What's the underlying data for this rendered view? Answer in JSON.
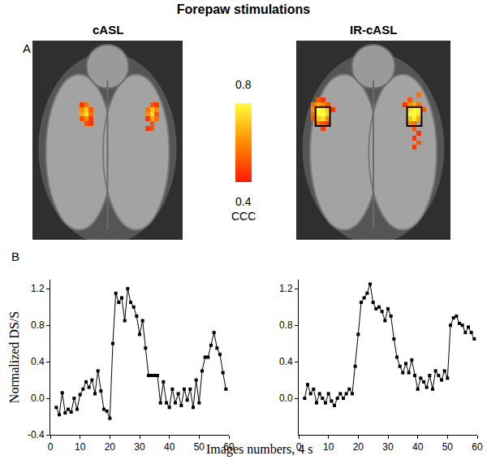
{
  "title": "Forepaw stimulations",
  "xlabel": "Images numbers, 4 s",
  "panel_labels": [
    "A",
    "B"
  ],
  "colorbar": {
    "label": "CCC",
    "range": [
      0.4,
      0.8
    ],
    "ticks": [
      0.4,
      0.8
    ]
  },
  "chart_data": [
    {
      "type": "heatmap",
      "title": "cASL",
      "columns": 32,
      "rows": 42,
      "cells": [
        [
          10,
          13,
          0.45
        ],
        [
          11,
          13,
          0.55
        ],
        [
          10,
          14,
          0.6
        ],
        [
          11,
          14,
          0.7
        ],
        [
          12,
          14,
          0.5
        ],
        [
          10,
          15,
          0.65
        ],
        [
          11,
          15,
          0.75
        ],
        [
          12,
          15,
          0.55
        ],
        [
          10,
          16,
          0.5
        ],
        [
          11,
          16,
          0.6
        ],
        [
          12,
          16,
          0.45
        ],
        [
          11,
          17,
          0.5
        ],
        [
          12,
          17,
          0.45
        ],
        [
          25,
          13,
          0.5
        ],
        [
          26,
          13,
          0.45
        ],
        [
          24,
          14,
          0.55
        ],
        [
          25,
          14,
          0.7
        ],
        [
          26,
          14,
          0.6
        ],
        [
          24,
          15,
          0.6
        ],
        [
          25,
          15,
          0.75
        ],
        [
          26,
          15,
          0.5
        ],
        [
          24,
          16,
          0.45
        ],
        [
          25,
          16,
          0.65
        ],
        [
          26,
          16,
          0.55
        ],
        [
          25,
          17,
          0.5
        ],
        [
          24,
          18,
          0.45
        ],
        [
          25,
          18,
          0.5
        ]
      ],
      "roi": []
    },
    {
      "type": "heatmap",
      "title": "IR-cASL",
      "columns": 32,
      "rows": 42,
      "cells": [
        [
          4,
          12,
          0.5
        ],
        [
          5,
          12,
          0.45
        ],
        [
          3,
          13,
          0.55
        ],
        [
          4,
          13,
          0.65
        ],
        [
          5,
          13,
          0.6
        ],
        [
          6,
          13,
          0.5
        ],
        [
          3,
          14,
          0.6
        ],
        [
          4,
          14,
          0.8
        ],
        [
          5,
          14,
          0.78
        ],
        [
          6,
          14,
          0.7
        ],
        [
          7,
          14,
          0.45
        ],
        [
          3,
          15,
          0.55
        ],
        [
          4,
          15,
          0.78
        ],
        [
          5,
          15,
          0.8
        ],
        [
          6,
          15,
          0.72
        ],
        [
          3,
          16,
          0.5
        ],
        [
          4,
          16,
          0.7
        ],
        [
          5,
          16,
          0.75
        ],
        [
          6,
          16,
          0.6
        ],
        [
          4,
          17,
          0.55
        ],
        [
          5,
          17,
          0.5
        ],
        [
          6,
          17,
          0.45
        ],
        [
          5,
          18,
          0.45
        ],
        [
          23,
          12,
          0.5
        ],
        [
          25,
          11,
          0.55
        ],
        [
          22,
          13,
          0.45
        ],
        [
          23,
          13,
          0.6
        ],
        [
          24,
          13,
          0.65
        ],
        [
          25,
          13,
          0.55
        ],
        [
          23,
          14,
          0.75
        ],
        [
          24,
          14,
          0.8
        ],
        [
          25,
          14,
          0.78
        ],
        [
          26,
          14,
          0.5
        ],
        [
          23,
          15,
          0.78
        ],
        [
          24,
          15,
          0.8
        ],
        [
          25,
          15,
          0.75
        ],
        [
          23,
          16,
          0.7
        ],
        [
          24,
          16,
          0.78
        ],
        [
          25,
          16,
          0.65
        ],
        [
          23,
          17,
          0.6
        ],
        [
          24,
          17,
          0.55
        ],
        [
          24,
          18,
          0.5
        ],
        [
          25,
          19,
          0.45
        ],
        [
          24,
          20,
          0.45
        ],
        [
          25,
          21,
          0.5
        ],
        [
          24,
          22,
          0.45
        ]
      ],
      "roi": [
        {
          "x": [
            3.5,
            6.5
          ],
          "y": [
            13.5,
            17.5
          ]
        },
        {
          "x": [
            22.5,
            25.5
          ],
          "y": [
            13.5,
            17.5
          ]
        }
      ]
    },
    {
      "type": "line",
      "ylabel": "Normalized DS/S",
      "color": "#000000",
      "marker": "square",
      "line_style": "solid",
      "x": [
        2,
        3,
        4,
        5,
        6,
        7,
        8,
        9,
        10,
        11,
        12,
        13,
        14,
        15,
        16,
        17,
        18,
        19,
        20,
        21,
        22,
        23,
        24,
        25,
        26,
        27,
        28,
        29,
        30,
        31,
        32,
        33,
        34,
        35,
        36,
        37,
        38,
        39,
        40,
        41,
        42,
        43,
        44,
        45,
        46,
        47,
        48,
        49,
        50,
        51,
        52,
        53,
        54,
        55,
        56,
        57,
        58,
        59
      ],
      "values": [
        -0.1,
        -0.18,
        0.06,
        -0.16,
        -0.12,
        -0.15,
        0.0,
        -0.12,
        0.04,
        0.1,
        0.18,
        0.12,
        0.2,
        0.05,
        0.3,
        0.08,
        -0.12,
        -0.14,
        -0.22,
        0.6,
        1.15,
        1.05,
        1.1,
        0.85,
        1.2,
        1.05,
        1.0,
        0.9,
        0.7,
        0.85,
        0.55,
        0.25,
        0.25,
        0.25,
        0.25,
        -0.05,
        0.18,
        -0.05,
        -0.1,
        0.1,
        -0.05,
        0.05,
        -0.08,
        0.1,
        -0.02,
        0.1,
        -0.1,
        0.2,
        -0.05,
        0.3,
        0.45,
        0.45,
        0.58,
        0.72,
        0.55,
        0.48,
        0.28,
        0.1
      ],
      "xlim": [
        0,
        60
      ],
      "ylim": [
        -0.4,
        1.3
      ],
      "xticks": [
        0,
        10,
        20,
        30,
        40,
        50,
        60
      ],
      "yticks": [
        -0.4,
        {
          "value": 0,
          "label": "0.0"
        },
        0.4,
        0.8,
        1.2
      ]
    },
    {
      "type": "line",
      "color": "#000000",
      "marker": "square",
      "line_style": "solid",
      "x": [
        2,
        3,
        4,
        5,
        6,
        7,
        8,
        9,
        10,
        11,
        12,
        13,
        14,
        15,
        16,
        17,
        18,
        19,
        20,
        21,
        22,
        23,
        24,
        25,
        26,
        27,
        28,
        29,
        30,
        31,
        32,
        33,
        34,
        35,
        36,
        37,
        38,
        39,
        40,
        41,
        42,
        43,
        44,
        45,
        46,
        47,
        48,
        49,
        50,
        51,
        52,
        53,
        54,
        55,
        56,
        57,
        58,
        59
      ],
      "values": [
        0.0,
        0.15,
        0.05,
        0.1,
        -0.05,
        0.05,
        0.0,
        -0.05,
        0.05,
        -0.03,
        -0.08,
        0.0,
        0.05,
        0.0,
        0.05,
        0.1,
        0.05,
        0.35,
        0.7,
        1.05,
        1.1,
        1.15,
        1.25,
        1.05,
        0.98,
        1.0,
        0.95,
        0.85,
        0.98,
        0.9,
        0.65,
        0.45,
        0.35,
        0.28,
        0.38,
        0.28,
        0.42,
        0.25,
        0.1,
        0.22,
        0.18,
        0.12,
        0.25,
        0.1,
        0.3,
        0.25,
        0.2,
        0.3,
        0.22,
        0.8,
        0.88,
        0.9,
        0.82,
        0.8,
        0.72,
        0.78,
        0.72,
        0.65
      ],
      "xlim": [
        0,
        60
      ],
      "ylim": [
        -0.4,
        1.3
      ],
      "xticks": [
        0,
        10,
        20,
        30,
        40,
        50,
        60
      ],
      "yticks": [
        {
          "value": 0,
          "label": "0.0"
        },
        0.4,
        0.8,
        1.2
      ]
    }
  ]
}
